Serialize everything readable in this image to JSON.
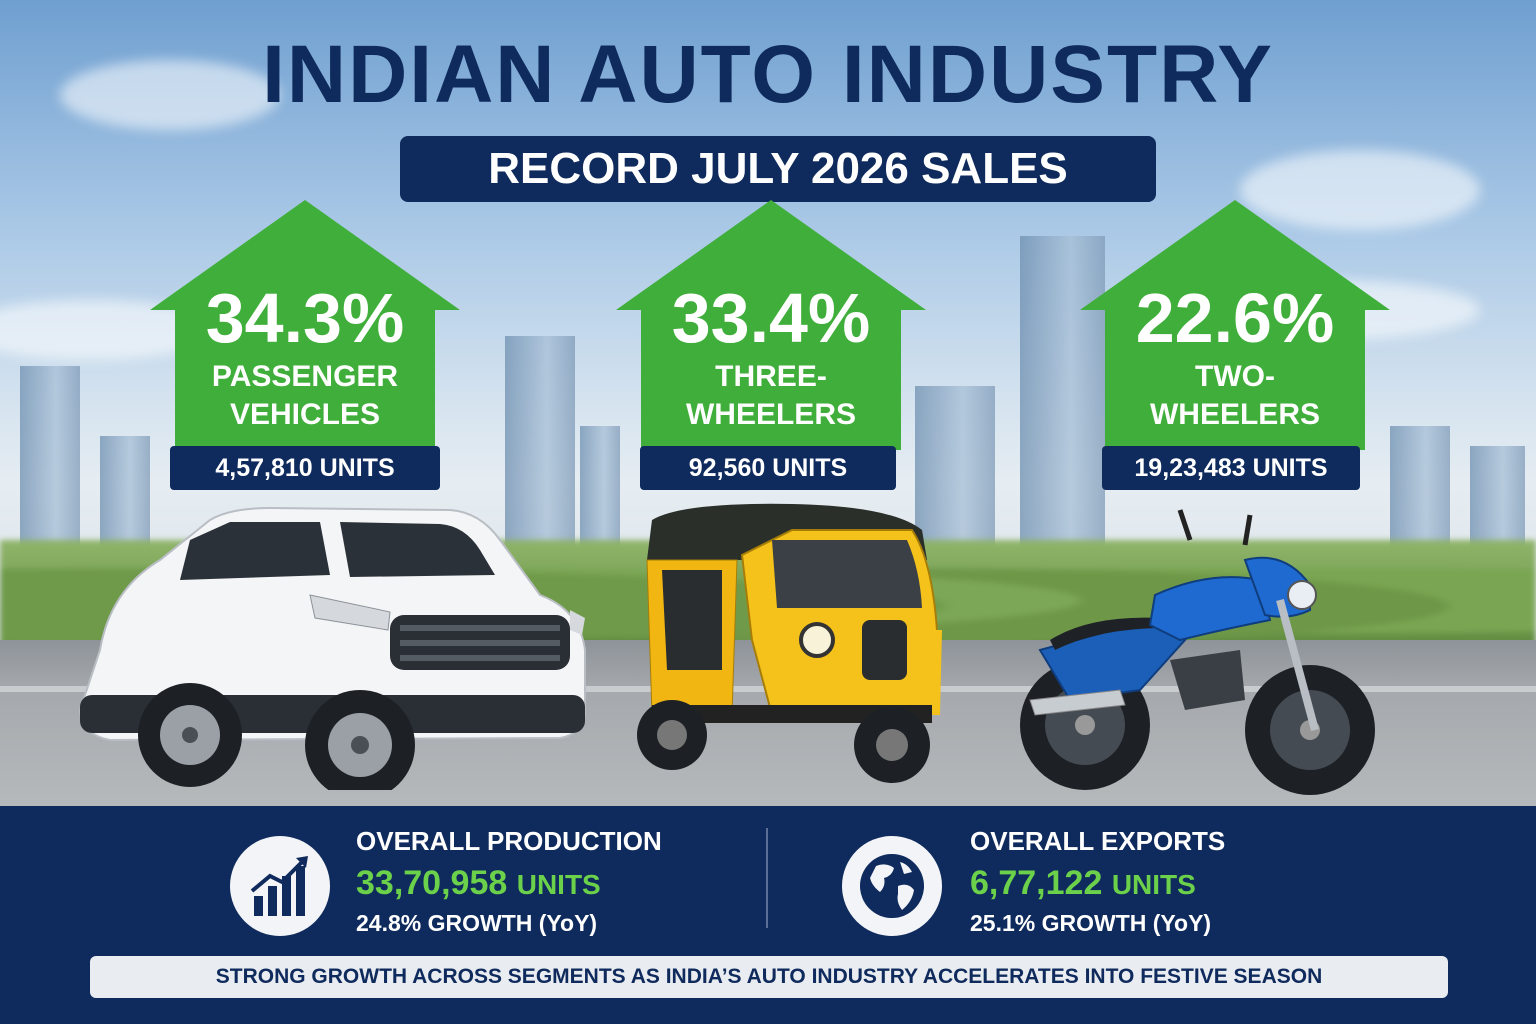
{
  "header": {
    "title": "INDIAN AUTO INDUSTRY",
    "subtitle": "RECORD JULY 2026 SALES"
  },
  "segments": [
    {
      "growth": "34.3%",
      "label_line1": "PASSENGER",
      "label_line2": "VEHICLES",
      "units": "4,57,810 UNITS",
      "icon": "suv-car"
    },
    {
      "growth": "33.4%",
      "label_line1": "THREE-",
      "label_line2": "WHEELERS",
      "units": "92,560 UNITS",
      "icon": "auto-rickshaw"
    },
    {
      "growth": "22.6%",
      "label_line1": "TWO-",
      "label_line2": "WHEELERS",
      "units": "19,23,483 UNITS",
      "icon": "motorcycle"
    }
  ],
  "stats": {
    "production": {
      "title": "OVERALL PRODUCTION",
      "value": "33,70,958",
      "value_unit": "UNITS",
      "growth": "24.8% GROWTH (YoY)",
      "icon": "growth-chart-icon"
    },
    "exports": {
      "title": "OVERALL EXPORTS",
      "value": "6,77,122",
      "value_unit": "UNITS",
      "growth": "25.1% GROWTH (YoY)",
      "icon": "globe-icon"
    }
  },
  "footer": "STRONG GROWTH ACROSS SEGMENTS AS INDIA’S AUTO INDUSTRY ACCELERATES INTO FESTIVE SEASON",
  "colors": {
    "navy": "#0f2a5c",
    "green_arrow": "#3fae3a",
    "green_value": "#6cd14a"
  }
}
